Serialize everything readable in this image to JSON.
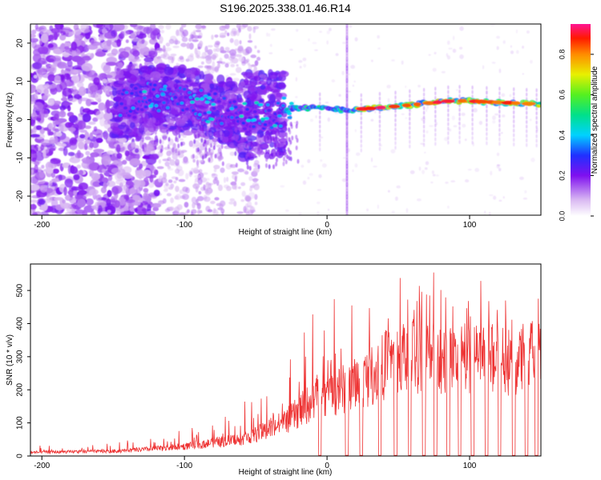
{
  "title": "S196.2025.338.01.46.R14",
  "chart_data": [
    {
      "type": "heatmap",
      "name": "spectrogram",
      "xlabel": "Height of straight line (km)",
      "ylabel": "Frequency (Hz)",
      "xlim": [
        -208,
        150
      ],
      "ylim": [
        -25,
        25
      ],
      "x_ticks": [
        -200,
        -100,
        0,
        100
      ],
      "x_tick_labels": [
        "-200",
        "-100",
        "0",
        "100"
      ],
      "y_ticks": [
        -20,
        -10,
        0,
        10,
        20
      ],
      "y_tick_labels": [
        "-20",
        "-10",
        "0",
        "10",
        "20"
      ],
      "ridge": [
        {
          "x": -140,
          "y": 4
        },
        {
          "x": -120,
          "y": 6
        },
        {
          "x": -100,
          "y": 5
        },
        {
          "x": -80,
          "y": 3
        },
        {
          "x": -60,
          "y": 1
        },
        {
          "x": -40,
          "y": 1
        },
        {
          "x": -25,
          "y": 3
        },
        {
          "x": 0,
          "y": 3
        },
        {
          "x": 15,
          "y": 2.5
        },
        {
          "x": 50,
          "y": 3.5
        },
        {
          "x": 90,
          "y": 5
        },
        {
          "x": 150,
          "y": 4
        }
      ],
      "colorbar": {
        "label": "Normalized spectral amplitude",
        "range": [
          0,
          0.95
        ],
        "ticks": [
          0.0,
          0.2,
          0.4,
          0.6,
          0.8
        ],
        "tick_labels": [
          "0.0",
          "0.2",
          "0.4",
          "0.6",
          "0.8"
        ],
        "stops": [
          {
            "v": 0.0,
            "color": "#ffffff"
          },
          {
            "v": 0.08,
            "color": "#d9b8f2"
          },
          {
            "v": 0.2,
            "color": "#7f10ef"
          },
          {
            "v": 0.3,
            "color": "#2030ff"
          },
          {
            "v": 0.4,
            "color": "#00d2ff"
          },
          {
            "v": 0.5,
            "color": "#00e08a"
          },
          {
            "v": 0.6,
            "color": "#55f020"
          },
          {
            "v": 0.7,
            "color": "#e8f000"
          },
          {
            "v": 0.8,
            "color": "#ff8c00"
          },
          {
            "v": 0.88,
            "color": "#ff1a00"
          },
          {
            "v": 0.95,
            "color": "#ff1493"
          }
        ]
      }
    },
    {
      "type": "line",
      "name": "snr",
      "xlabel": "Height of straight line (km)",
      "ylabel": "SNR (10 * v/v)",
      "xlim": [
        -208,
        150
      ],
      "ylim": [
        0,
        580
      ],
      "x_ticks": [
        -200,
        -100,
        0,
        100
      ],
      "x_tick_labels": [
        "-200",
        "-100",
        "0",
        "100"
      ],
      "y_ticks": [
        0,
        100,
        200,
        300,
        400,
        500
      ],
      "y_tick_labels": [
        "0",
        "100",
        "200",
        "300",
        "400",
        "500"
      ],
      "color": "#ee3333",
      "envelope": [
        {
          "x": -208,
          "y": 15
        },
        {
          "x": -150,
          "y": 20
        },
        {
          "x": -120,
          "y": 30
        },
        {
          "x": -100,
          "y": 40
        },
        {
          "x": -80,
          "y": 55
        },
        {
          "x": -60,
          "y": 70
        },
        {
          "x": -40,
          "y": 110
        },
        {
          "x": -25,
          "y": 160
        },
        {
          "x": -10,
          "y": 230
        },
        {
          "x": 0,
          "y": 250
        },
        {
          "x": 20,
          "y": 300
        },
        {
          "x": 35,
          "y": 350
        },
        {
          "x": 45,
          "y": 400
        },
        {
          "x": 60,
          "y": 410
        },
        {
          "x": 100,
          "y": 400
        },
        {
          "x": 150,
          "y": 410
        }
      ],
      "peak_max": 580,
      "dropouts_x": [
        -5,
        14,
        24,
        37,
        48,
        58,
        68,
        76,
        85,
        93,
        102,
        112,
        121,
        131,
        140,
        147
      ]
    }
  ]
}
